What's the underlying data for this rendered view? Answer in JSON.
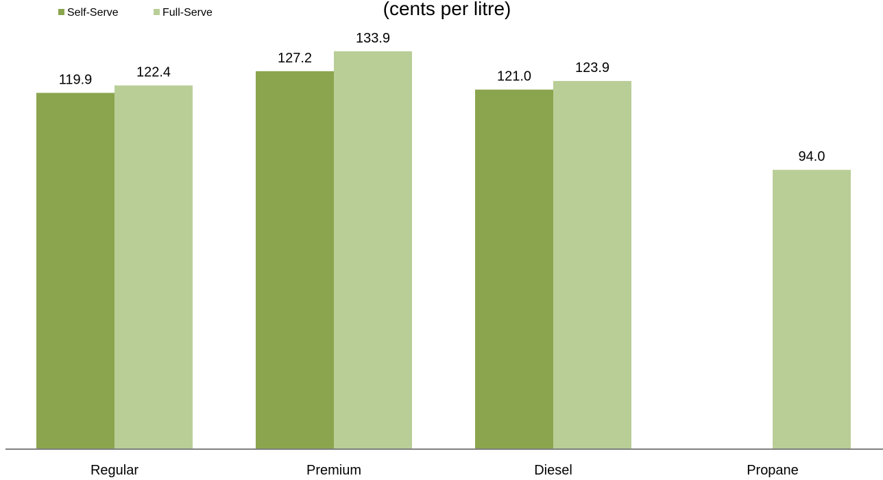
{
  "chart_data": {
    "type": "bar",
    "subtitle": "(cents per litre)",
    "categories": [
      "Regular",
      "Premium",
      "Diesel",
      "Propane"
    ],
    "series": [
      {
        "name": "Self-Serve",
        "color": "#8ba54e",
        "values": [
          119.9,
          127.2,
          121.0,
          null
        ],
        "labels": [
          "119.9",
          "127.2",
          "121.0",
          ""
        ]
      },
      {
        "name": "Full-Serve",
        "color": "#b9ce97",
        "values": [
          122.4,
          133.9,
          123.9,
          94.0
        ],
        "labels": [
          "122.4",
          "133.9",
          "123.9",
          "94.0"
        ]
      }
    ],
    "ylim": [
      0,
      150
    ],
    "grid": false,
    "legend_position": "top-left",
    "axis_color": "#7f7f7f"
  }
}
